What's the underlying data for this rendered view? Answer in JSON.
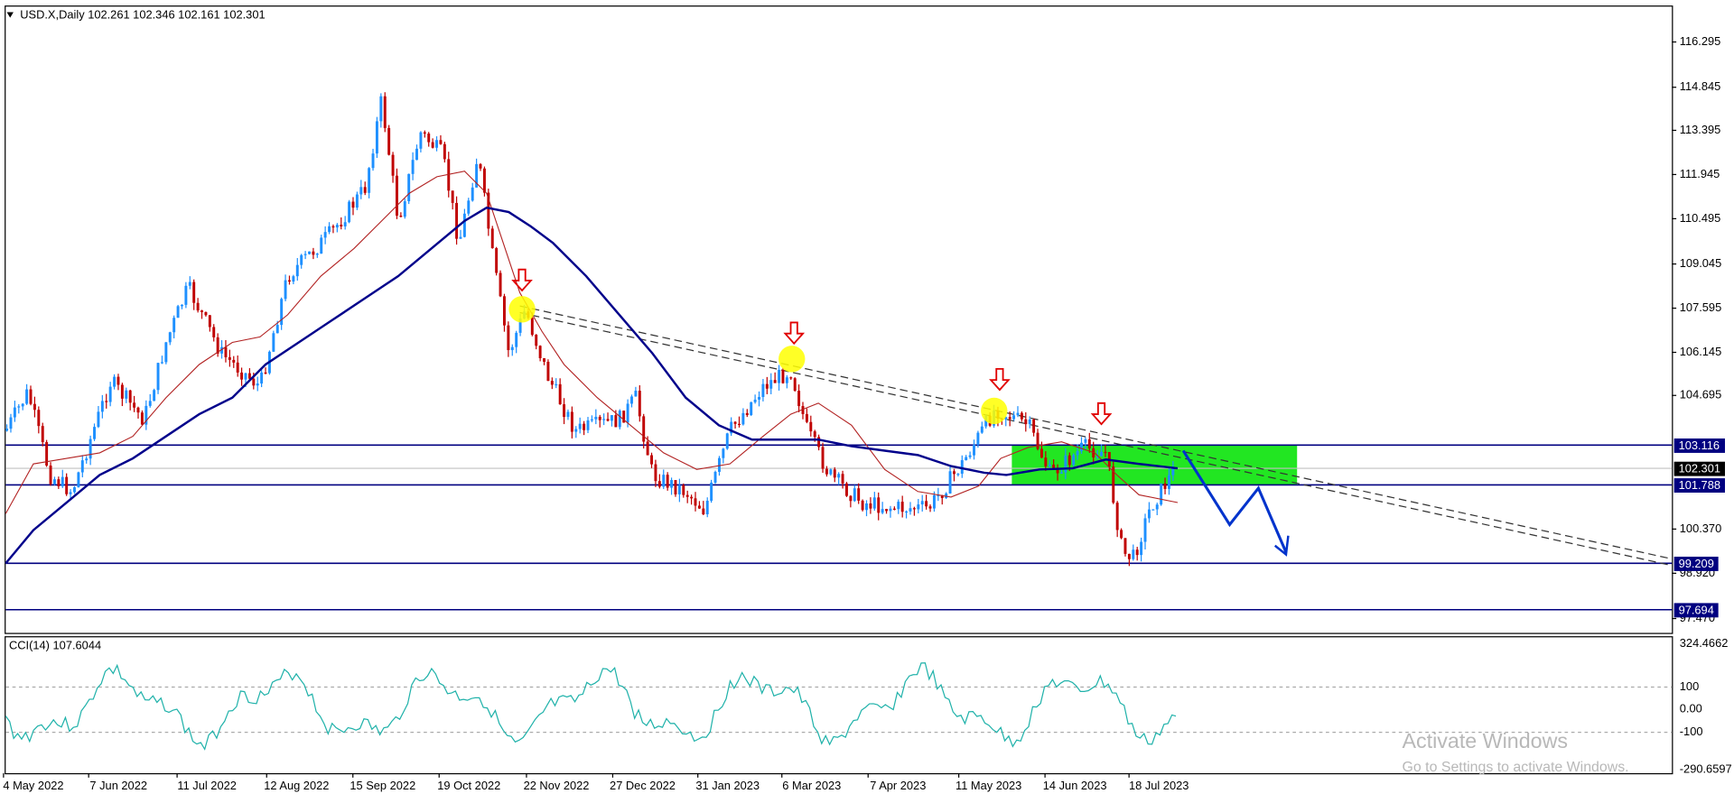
{
  "header": {
    "symbol_info": "USD.X,Daily  102.261 102.346 102.161 102.301"
  },
  "price_axis": {
    "labels": [
      "116.295",
      "114.845",
      "113.395",
      "111.945",
      "110.495",
      "109.045",
      "107.595",
      "106.145",
      "104.695",
      "100.370",
      "98.920",
      "97.470"
    ]
  },
  "level_labels": {
    "upper": "103.116",
    "current": "102.301",
    "lower": "101.788",
    "support": "99.209",
    "bottom": "97.694"
  },
  "cci": {
    "title": "CCI(14) 107.6044",
    "labels": [
      "324.4662",
      "100",
      "0.00",
      "-100",
      "-290.6597"
    ]
  },
  "date_labels": [
    "4 May 2022",
    "7 Jun 2022",
    "11 Jul 2022",
    "12 Aug 2022",
    "15 Sep 2022",
    "19 Oct 2022",
    "22 Nov 2022",
    "27 Dec 2022",
    "31 Jan 2023",
    "6 Mar 2023",
    "7 Apr 2023",
    "11 May 2023",
    "14 Jun 2023",
    "18 Jul 2023"
  ],
  "watermark": {
    "title": "Activate Windows",
    "subtitle": "Go to Settings to activate Windows."
  }
}
